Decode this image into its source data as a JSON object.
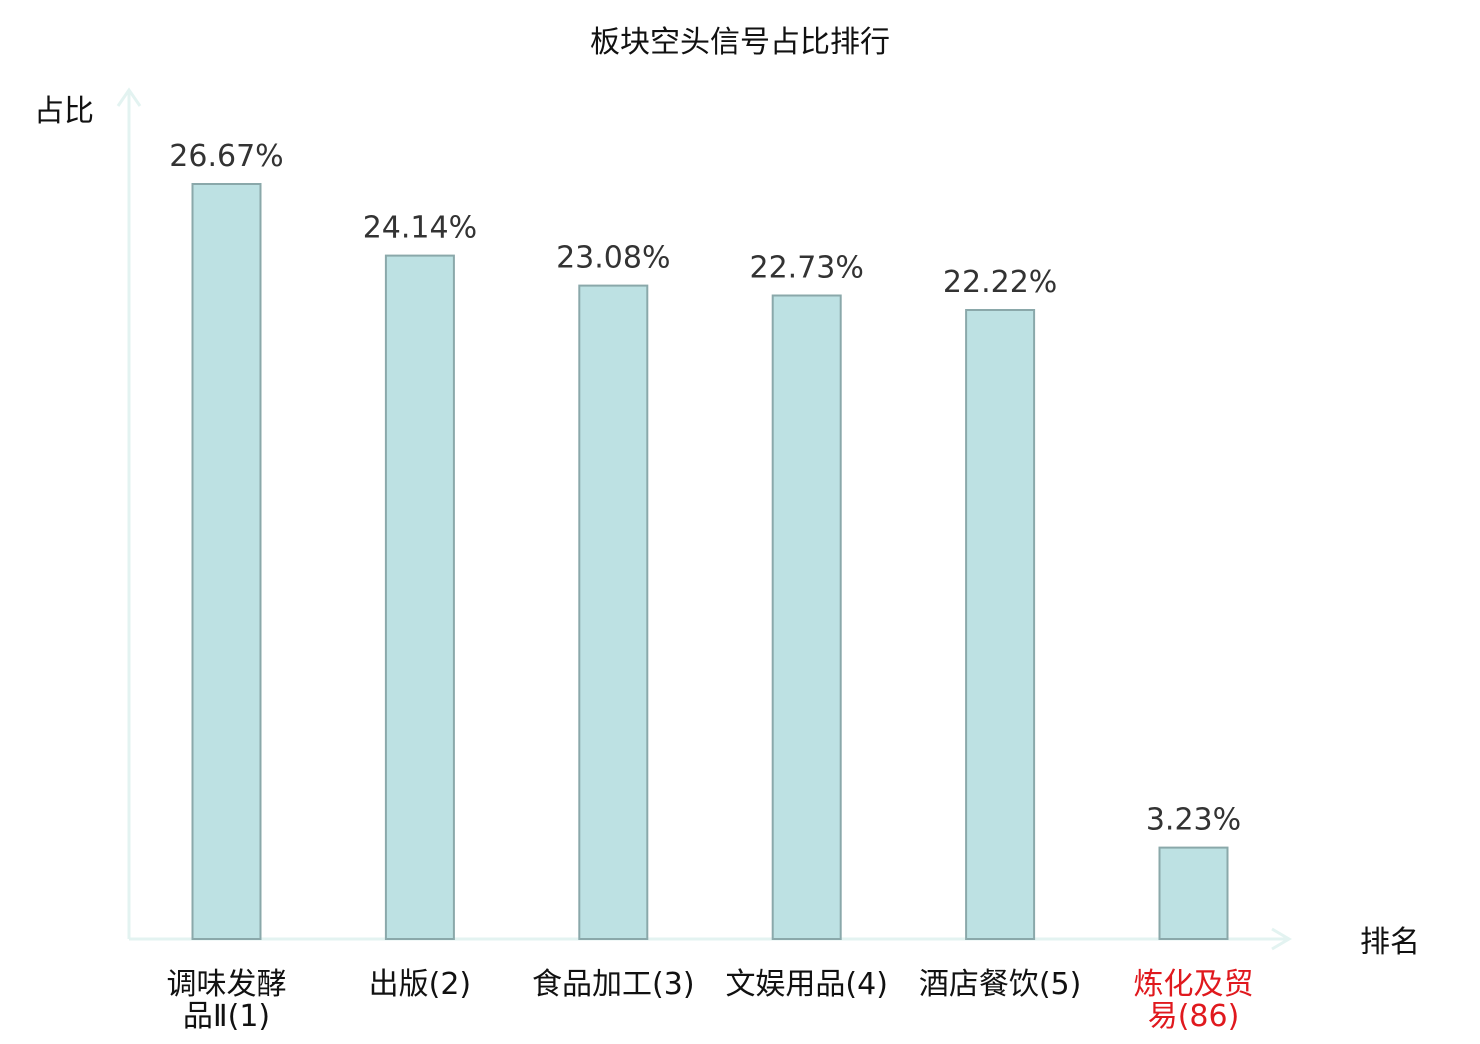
{
  "colors": {
    "bar_fill": "#bde1e3",
    "bar_stroke": "#8aa8aa",
    "axis": "#e3f3f1",
    "text": "#111111",
    "value_text": "#333333",
    "highlight": "#e0191e"
  },
  "chart_data": {
    "type": "bar",
    "title": "板块空头信号占比排行",
    "ylabel": "占比",
    "xlabel": "排名",
    "ylim": [
      0,
      28
    ],
    "grid": false,
    "legend": "none",
    "categories": [
      {
        "lines": [
          "调味发酵",
          "品Ⅱ(1)"
        ],
        "highlight": false
      },
      {
        "lines": [
          "出版(2)"
        ],
        "highlight": false
      },
      {
        "lines": [
          "食品加工(3)"
        ],
        "highlight": false
      },
      {
        "lines": [
          "文娱用品(4)"
        ],
        "highlight": false
      },
      {
        "lines": [
          "酒店餐饮(5)"
        ],
        "highlight": false
      },
      {
        "lines": [
          "炼化及贸",
          "易(86)"
        ],
        "highlight": true
      }
    ],
    "values": [
      26.67,
      24.14,
      23.08,
      22.73,
      22.22,
      3.23
    ],
    "value_labels": [
      "26.67%",
      "24.14%",
      "23.08%",
      "22.73%",
      "22.22%",
      "3.23%"
    ]
  }
}
